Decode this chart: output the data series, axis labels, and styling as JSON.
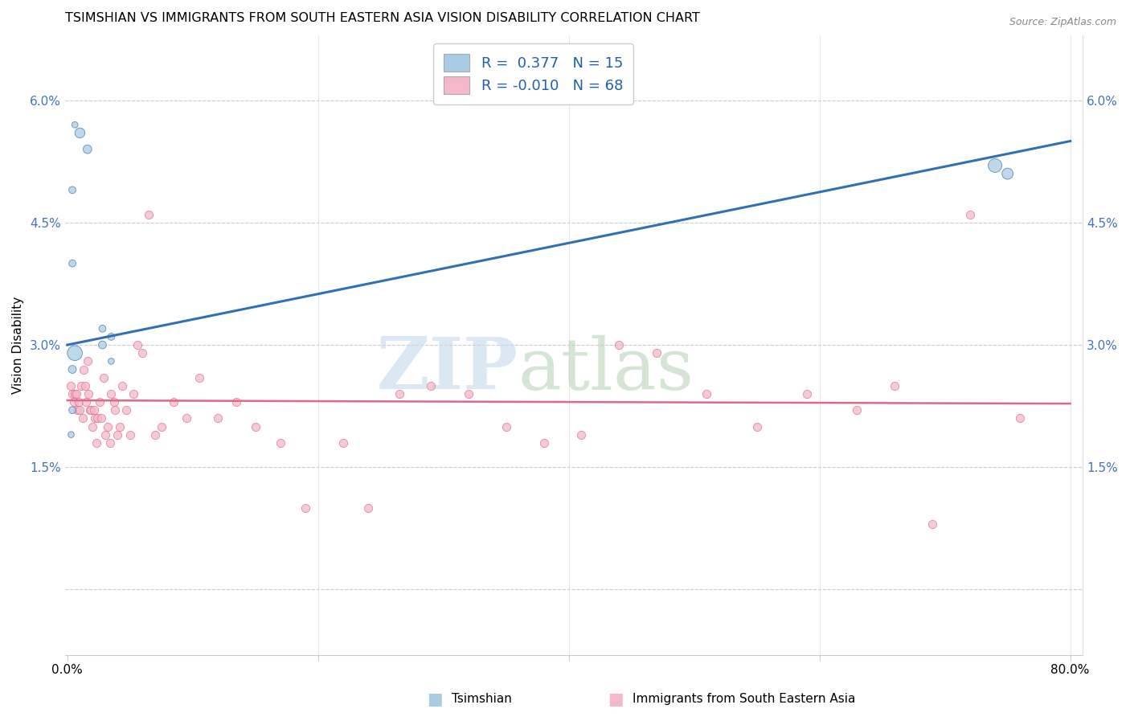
{
  "title": "TSIMSHIAN VS IMMIGRANTS FROM SOUTH EASTERN ASIA VISION DISABILITY CORRELATION CHART",
  "source": "Source: ZipAtlas.com",
  "ylabel": "Vision Disability",
  "y_ticks": [
    0.0,
    0.015,
    0.03,
    0.045,
    0.06
  ],
  "y_tick_labels": [
    "",
    "1.5%",
    "3.0%",
    "4.5%",
    "6.0%"
  ],
  "xlim": [
    -0.002,
    0.81
  ],
  "ylim": [
    -0.008,
    0.068
  ],
  "color_blue": "#a8cce4",
  "color_pink": "#f4b8ca",
  "line_color_blue": "#3070b5",
  "line_color_pink": "#e06888",
  "tsimshian_x": [
    0.006,
    0.01,
    0.016,
    0.004,
    0.004,
    0.028,
    0.028,
    0.035,
    0.035,
    0.006,
    0.004,
    0.004,
    0.003,
    0.74,
    0.75
  ],
  "tsimshian_y": [
    0.057,
    0.056,
    0.054,
    0.049,
    0.04,
    0.032,
    0.03,
    0.031,
    0.028,
    0.029,
    0.027,
    0.022,
    0.019,
    0.052,
    0.051
  ],
  "tsimshian_size": [
    30,
    80,
    60,
    40,
    40,
    40,
    50,
    40,
    30,
    180,
    50,
    40,
    30,
    150,
    100
  ],
  "immigrants_x": [
    0.003,
    0.004,
    0.005,
    0.006,
    0.007,
    0.008,
    0.009,
    0.01,
    0.011,
    0.012,
    0.013,
    0.014,
    0.015,
    0.016,
    0.017,
    0.018,
    0.019,
    0.02,
    0.021,
    0.022,
    0.023,
    0.024,
    0.026,
    0.027,
    0.029,
    0.03,
    0.032,
    0.034,
    0.035,
    0.037,
    0.038,
    0.04,
    0.042,
    0.044,
    0.047,
    0.05,
    0.053,
    0.056,
    0.06,
    0.065,
    0.07,
    0.075,
    0.085,
    0.095,
    0.105,
    0.12,
    0.135,
    0.15,
    0.17,
    0.19,
    0.22,
    0.24,
    0.265,
    0.29,
    0.32,
    0.35,
    0.38,
    0.41,
    0.44,
    0.47,
    0.51,
    0.55,
    0.59,
    0.63,
    0.66,
    0.69,
    0.72,
    0.76
  ],
  "immigrants_y": [
    0.025,
    0.024,
    0.023,
    0.024,
    0.024,
    0.022,
    0.023,
    0.022,
    0.025,
    0.021,
    0.027,
    0.025,
    0.023,
    0.028,
    0.024,
    0.022,
    0.022,
    0.02,
    0.022,
    0.021,
    0.018,
    0.021,
    0.023,
    0.021,
    0.026,
    0.019,
    0.02,
    0.018,
    0.024,
    0.023,
    0.022,
    0.019,
    0.02,
    0.025,
    0.022,
    0.019,
    0.024,
    0.03,
    0.029,
    0.046,
    0.019,
    0.02,
    0.023,
    0.021,
    0.026,
    0.021,
    0.023,
    0.02,
    0.018,
    0.01,
    0.018,
    0.01,
    0.024,
    0.025,
    0.024,
    0.02,
    0.018,
    0.019,
    0.03,
    0.029,
    0.024,
    0.02,
    0.024,
    0.022,
    0.025,
    0.008,
    0.046,
    0.021
  ],
  "blue_line_x0": 0.0,
  "blue_line_y0": 0.03,
  "blue_line_x1": 0.8,
  "blue_line_y1": 0.055,
  "pink_line_x0": 0.0,
  "pink_line_y0": 0.0232,
  "pink_line_x1": 0.8,
  "pink_line_y1": 0.0228
}
